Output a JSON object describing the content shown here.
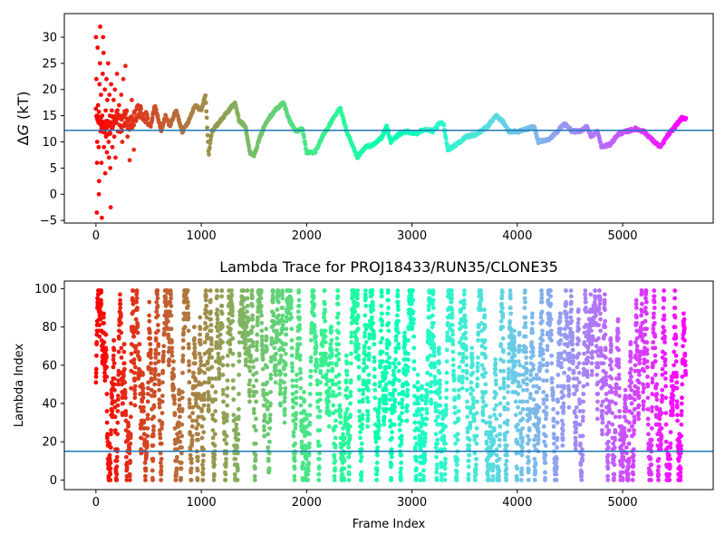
{
  "chart_data": [
    {
      "type": "scatter",
      "title": "",
      "ylabel_prefix": "Δ",
      "ylabel_var": "G",
      "ylabel_suffix": " (kT)",
      "xlabel": "",
      "xlim": [
        -300,
        5860
      ],
      "ylim": [
        -5.5,
        34.5
      ],
      "xticks": [
        0,
        1000,
        2000,
        3000,
        4000,
        5000
      ],
      "yticks": [
        -5,
        0,
        5,
        10,
        15,
        20,
        25,
        30
      ],
      "hline": 12.2,
      "hline_color": "#1f77b4",
      "colormap": "rainbow",
      "color_reversed": true,
      "x_max": 5600,
      "trace_anchors": [
        [
          0,
          15
        ],
        [
          40,
          14
        ],
        [
          80,
          13
        ],
        [
          120,
          12
        ],
        [
          160,
          14
        ],
        [
          200,
          15
        ],
        [
          240,
          13
        ],
        [
          280,
          15
        ],
        [
          320,
          13
        ],
        [
          360,
          14
        ],
        [
          400,
          16
        ],
        [
          460,
          15
        ],
        [
          520,
          13
        ],
        [
          560,
          17
        ],
        [
          620,
          12
        ],
        [
          660,
          15
        ],
        [
          700,
          13
        ],
        [
          760,
          16
        ],
        [
          820,
          12
        ],
        [
          880,
          14
        ],
        [
          940,
          17
        ],
        [
          1000,
          16
        ],
        [
          1040,
          19
        ],
        [
          1070,
          7.5
        ],
        [
          1100,
          12
        ],
        [
          1180,
          14
        ],
        [
          1260,
          16
        ],
        [
          1320,
          17.5
        ],
        [
          1360,
          14
        ],
        [
          1420,
          13
        ],
        [
          1460,
          8
        ],
        [
          1500,
          7.5
        ],
        [
          1560,
          11
        ],
        [
          1620,
          14
        ],
        [
          1700,
          16
        ],
        [
          1780,
          17.5
        ],
        [
          1840,
          14
        ],
        [
          1900,
          12
        ],
        [
          1960,
          12.5
        ],
        [
          2000,
          8
        ],
        [
          2080,
          8
        ],
        [
          2150,
          11
        ],
        [
          2240,
          14
        ],
        [
          2320,
          16.5
        ],
        [
          2380,
          12
        ],
        [
          2440,
          9
        ],
        [
          2480,
          7
        ],
        [
          2560,
          9
        ],
        [
          2640,
          9.5
        ],
        [
          2720,
          11
        ],
        [
          2760,
          13
        ],
        [
          2800,
          10
        ],
        [
          2880,
          11.5
        ],
        [
          2960,
          12
        ],
        [
          3040,
          11.5
        ],
        [
          3120,
          12.5
        ],
        [
          3200,
          12
        ],
        [
          3260,
          13.5
        ],
        [
          3300,
          13.5
        ],
        [
          3340,
          8.5
        ],
        [
          3420,
          9.5
        ],
        [
          3520,
          11
        ],
        [
          3620,
          11.5
        ],
        [
          3720,
          13
        ],
        [
          3800,
          15
        ],
        [
          3860,
          14
        ],
        [
          3920,
          12
        ],
        [
          4020,
          12
        ],
        [
          4100,
          12.5
        ],
        [
          4160,
          13
        ],
        [
          4200,
          10
        ],
        [
          4300,
          10.5
        ],
        [
          4380,
          12
        ],
        [
          4450,
          13.5
        ],
        [
          4520,
          12
        ],
        [
          4600,
          12
        ],
        [
          4660,
          13
        ],
        [
          4700,
          11
        ],
        [
          4760,
          12
        ],
        [
          4800,
          9
        ],
        [
          4880,
          9.5
        ],
        [
          4960,
          11.5
        ],
        [
          5040,
          12
        ],
        [
          5120,
          12.5
        ],
        [
          5200,
          12
        ],
        [
          5250,
          11
        ],
        [
          5300,
          10
        ],
        [
          5360,
          9
        ],
        [
          5420,
          11
        ],
        [
          5500,
          13
        ],
        [
          5560,
          14.5
        ],
        [
          5600,
          14.5
        ]
      ],
      "early_scatter": [
        [
          0,
          30
        ],
        [
          4,
          22
        ],
        [
          8,
          -3.5
        ],
        [
          10,
          6
        ],
        [
          12,
          10
        ],
        [
          16,
          28
        ],
        [
          20,
          17
        ],
        [
          22,
          14
        ],
        [
          26,
          9
        ],
        [
          28,
          0
        ],
        [
          30,
          2.5
        ],
        [
          34,
          21
        ],
        [
          38,
          25
        ],
        [
          40,
          32
        ],
        [
          44,
          12
        ],
        [
          48,
          19
        ],
        [
          52,
          6
        ],
        [
          56,
          -4.5
        ],
        [
          60,
          15
        ],
        [
          64,
          23
        ],
        [
          68,
          30
        ],
        [
          72,
          27
        ],
        [
          76,
          9
        ],
        [
          80,
          13
        ],
        [
          84,
          20
        ],
        [
          88,
          4
        ],
        [
          92,
          16
        ],
        [
          96,
          11
        ],
        [
          100,
          22
        ],
        [
          104,
          8
        ],
        [
          108,
          18
        ],
        [
          112,
          14
        ],
        [
          116,
          25
        ],
        [
          120,
          10
        ],
        [
          124,
          7
        ],
        [
          128,
          19
        ],
        [
          132,
          15
        ],
        [
          136,
          5
        ],
        [
          140,
          -2.5
        ],
        [
          144,
          21
        ],
        [
          150,
          16
        ],
        [
          156,
          9
        ],
        [
          162,
          13
        ],
        [
          168,
          18
        ],
        [
          174,
          11
        ],
        [
          180,
          20
        ],
        [
          186,
          7
        ],
        [
          192,
          14
        ],
        [
          200,
          23
        ],
        [
          210,
          12
        ],
        [
          220,
          17
        ],
        [
          230,
          15
        ],
        [
          240,
          19
        ],
        [
          250,
          10
        ],
        [
          260,
          22
        ],
        [
          270,
          13
        ],
        [
          280,
          24.5
        ],
        [
          290,
          16
        ],
        [
          300,
          11
        ],
        [
          320,
          6.5
        ],
        [
          340,
          18
        ],
        [
          360,
          8.5
        ],
        [
          380,
          14
        ],
        [
          400,
          17
        ]
      ]
    },
    {
      "type": "scatter",
      "title": "Lambda Trace for PROJ18433/RUN35/CLONE35",
      "xlabel": "Frame Index",
      "ylabel": "Lambda Index",
      "xlim": [
        -300,
        5860
      ],
      "ylim": [
        -5,
        104
      ],
      "xticks": [
        0,
        1000,
        2000,
        3000,
        4000,
        5000
      ],
      "yticks": [
        0,
        20,
        40,
        60,
        80,
        100
      ],
      "hline": 15,
      "hline_color": "#1f77b4",
      "colormap": "rainbow",
      "color_reversed": true,
      "x_max": 5600,
      "n_points": 4600
    }
  ]
}
